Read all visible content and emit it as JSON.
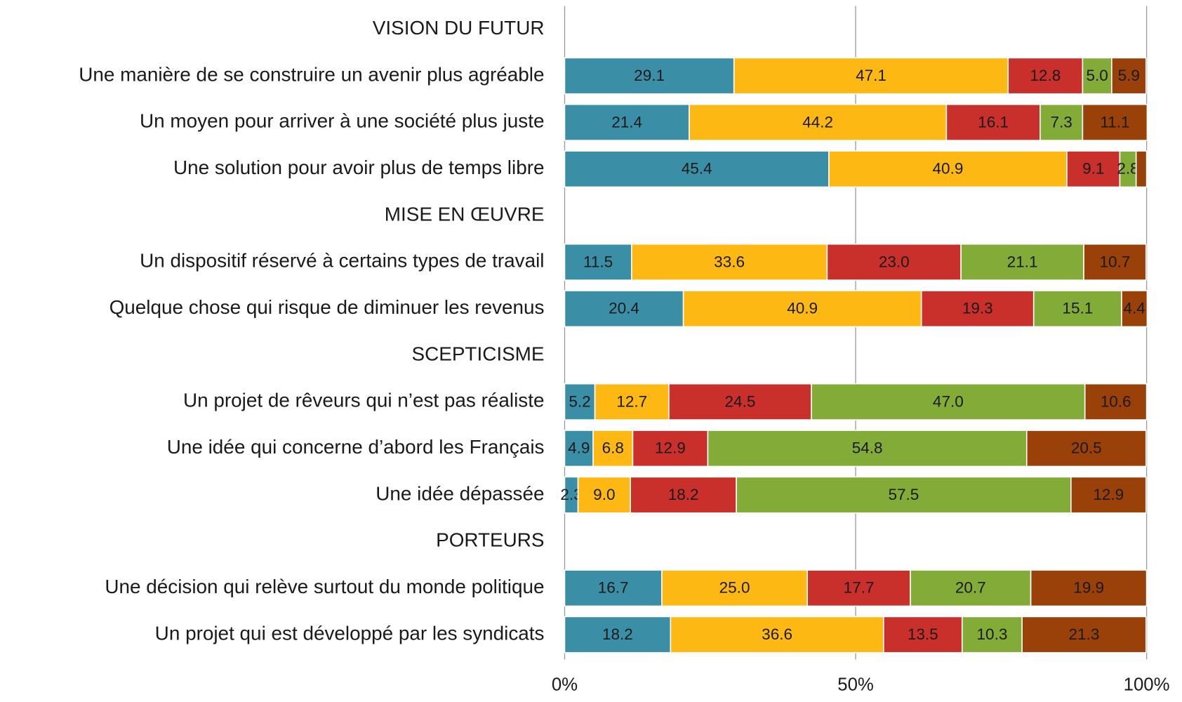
{
  "chart_data": {
    "type": "stacked_bar_horizontal",
    "categories": [
      "VISION DU FUTUR",
      "Une manière de se construire un avenir plus agréable",
      "Un moyen pour arriver à une société plus juste",
      "Une solution pour avoir plus de temps libre",
      "MISE EN ŒUVRE",
      "Un dispositif réservé à certains types de travail",
      "Quelque chose qui risque de diminuer les revenus",
      "SCEPTICISME",
      "Un projet de rêveurs qui n’est pas réaliste",
      "Une idée qui concerne d’abord les Français",
      "Une idée dépassée",
      "PORTEURS",
      "Une décision qui relève surtout du monde politique",
      "Un projet qui est développé par les syndicats"
    ],
    "series": [
      {
        "color": "#3a8fa6",
        "values": [
          null,
          29.1,
          21.4,
          45.4,
          null,
          11.5,
          20.4,
          null,
          5.2,
          4.9,
          2.3,
          null,
          16.7,
          18.2
        ],
        "value_labels": [
          null,
          "29.1",
          "21.4",
          "45.4",
          null,
          "11.5",
          "20.4",
          null,
          "5.2",
          "4.9",
          "2.3",
          null,
          "16.7",
          "18.2"
        ]
      },
      {
        "color": "#fdb813",
        "values": [
          null,
          47.1,
          44.2,
          40.9,
          null,
          33.6,
          40.9,
          null,
          12.7,
          6.8,
          9.0,
          null,
          25.0,
          36.6
        ],
        "value_labels": [
          null,
          "47.1",
          "44.2",
          "40.9",
          null,
          "33.6",
          "40.9",
          null,
          "12.7",
          "6.8",
          "9.0",
          null,
          "25.0",
          "36.6"
        ]
      },
      {
        "color": "#c9302c",
        "values": [
          null,
          12.8,
          16.1,
          9.1,
          null,
          23.0,
          19.3,
          null,
          24.5,
          12.9,
          18.2,
          null,
          17.7,
          13.5
        ],
        "value_labels": [
          null,
          "12.8",
          "16.1",
          "9.1",
          null,
          "23.0",
          "19.3",
          null,
          "24.5",
          "12.9",
          "18.2",
          null,
          "17.7",
          "13.5"
        ]
      },
      {
        "color": "#83ab38",
        "values": [
          null,
          5.0,
          7.3,
          2.8,
          null,
          21.1,
          15.1,
          null,
          47.0,
          54.8,
          57.5,
          null,
          20.7,
          10.3
        ],
        "value_labels": [
          null,
          "5.0",
          "7.3",
          "2.8",
          null,
          "21.1",
          "15.1",
          null,
          "47.0",
          "54.8",
          "57.5",
          null,
          "20.7",
          "10.3"
        ]
      },
      {
        "color": "#9a4009",
        "values": [
          null,
          5.9,
          11.1,
          1.8,
          null,
          10.7,
          4.4,
          null,
          10.6,
          20.5,
          12.9,
          null,
          19.9,
          21.3
        ],
        "value_labels": [
          null,
          "5.9",
          "11.1",
          null,
          null,
          "10.7",
          "4.4",
          null,
          "10.6",
          "20.5",
          "12.9",
          null,
          "19.9",
          "21.3"
        ]
      }
    ],
    "xlim": [
      0,
      100
    ],
    "xticks": [
      {
        "value": 0,
        "label": "0%"
      },
      {
        "value": 50,
        "label": "50%"
      },
      {
        "value": 100,
        "label": "100%"
      }
    ],
    "grid": true
  }
}
